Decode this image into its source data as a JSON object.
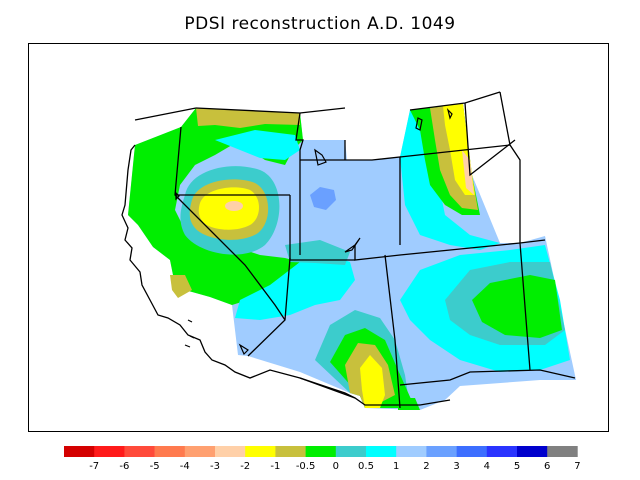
{
  "title": "PDSI reconstruction A.D. 1049",
  "legend": {
    "colors": [
      "#d40000",
      "#ff1a1a",
      "#ff4a3a",
      "#ff7a4e",
      "#ffa070",
      "#ffd0a8",
      "#ffff00",
      "#c8c03c",
      "#00ee00",
      "#3ccccc",
      "#00ffff",
      "#a0ccff",
      "#6aa0ff",
      "#3c6eff",
      "#2a34ff",
      "#0000cd",
      "#808080"
    ],
    "tick_labels": [
      "-7",
      "-6",
      "-5",
      "-4",
      "-3",
      "-2",
      "-1",
      "-0.5",
      "0",
      "0.5",
      "1",
      "2",
      "3",
      "4",
      "5",
      "6",
      "7"
    ]
  },
  "map_colors": {
    "light_blue": "#a0ccff",
    "cyan": "#00ffff",
    "teal": "#3ccccc",
    "green": "#00ee00",
    "olive": "#c8c03c",
    "yellow": "#ffff00",
    "peach": "#ffd0a8",
    "blue": "#6aa0ff"
  }
}
